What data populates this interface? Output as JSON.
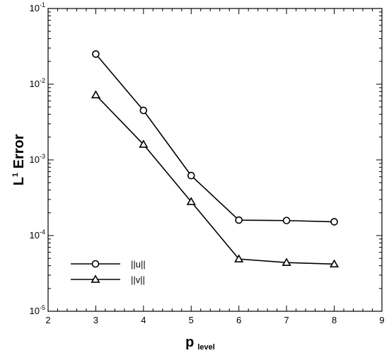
{
  "chart_data": {
    "type": "line",
    "xlabel": {
      "main": "p",
      "sub": "level"
    },
    "ylabel": {
      "pre": "L",
      "sup": "1",
      "post": " Error"
    },
    "xlim": [
      2,
      9
    ],
    "ylim": [
      1e-05,
      0.1
    ],
    "yscale": "log",
    "grid": false,
    "legend_position": "bottom-left",
    "x_ticks": [
      2,
      3,
      4,
      5,
      6,
      7,
      8,
      9
    ],
    "y_ticks": [
      {
        "value": 1e-05,
        "base": "10",
        "exp": "-5"
      },
      {
        "value": 0.0001,
        "base": "10",
        "exp": "-4"
      },
      {
        "value": 0.001,
        "base": "10",
        "exp": "-3"
      },
      {
        "value": 0.01,
        "base": "10",
        "exp": "-2"
      },
      {
        "value": 0.1,
        "base": "10",
        "exp": "-1"
      }
    ],
    "x": [
      3,
      4,
      5,
      6,
      7,
      8
    ],
    "series": [
      {
        "name": "||u||",
        "marker": "circle",
        "values": [
          0.025,
          0.0045,
          0.00062,
          0.00016,
          0.000158,
          0.000152
        ]
      },
      {
        "name": "||v||",
        "marker": "triangle",
        "values": [
          0.0072,
          0.0016,
          0.00028,
          4.9e-05,
          4.4e-05,
          4.2e-05
        ]
      }
    ]
  }
}
